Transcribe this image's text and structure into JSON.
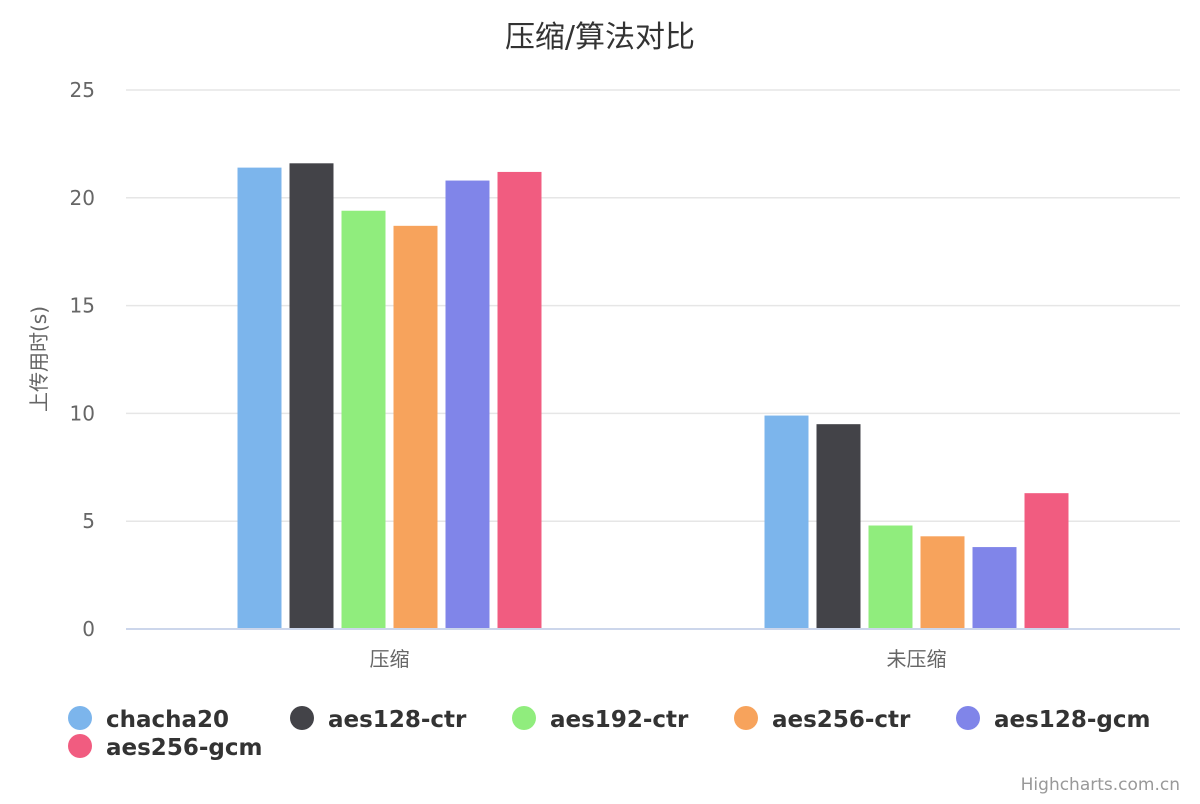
{
  "chart_data": {
    "type": "bar",
    "title": "压缩/算法对比",
    "xlabel": "",
    "ylabel": "上传用时(s)",
    "categories": [
      "压缩",
      "未压缩"
    ],
    "ylim": [
      0,
      25
    ],
    "yticks": [
      0,
      5,
      10,
      15,
      20,
      25
    ],
    "grid": true,
    "legend_position": "bottom-left",
    "series": [
      {
        "name": "chacha20",
        "color": "#7cb5ec",
        "values": [
          21.4,
          9.9
        ]
      },
      {
        "name": "aes128-ctr",
        "color": "#434348",
        "values": [
          21.6,
          9.5
        ]
      },
      {
        "name": "aes192-ctr",
        "color": "#90ed7d",
        "values": [
          19.4,
          4.8
        ]
      },
      {
        "name": "aes256-ctr",
        "color": "#f7a35c",
        "values": [
          18.7,
          4.3
        ]
      },
      {
        "name": "aes128-gcm",
        "color": "#8085e9",
        "values": [
          20.8,
          3.8
        ]
      },
      {
        "name": "aes256-gcm",
        "color": "#f15c80",
        "values": [
          21.2,
          6.3
        ]
      }
    ]
  },
  "credits": "Highcharts.com.cn"
}
